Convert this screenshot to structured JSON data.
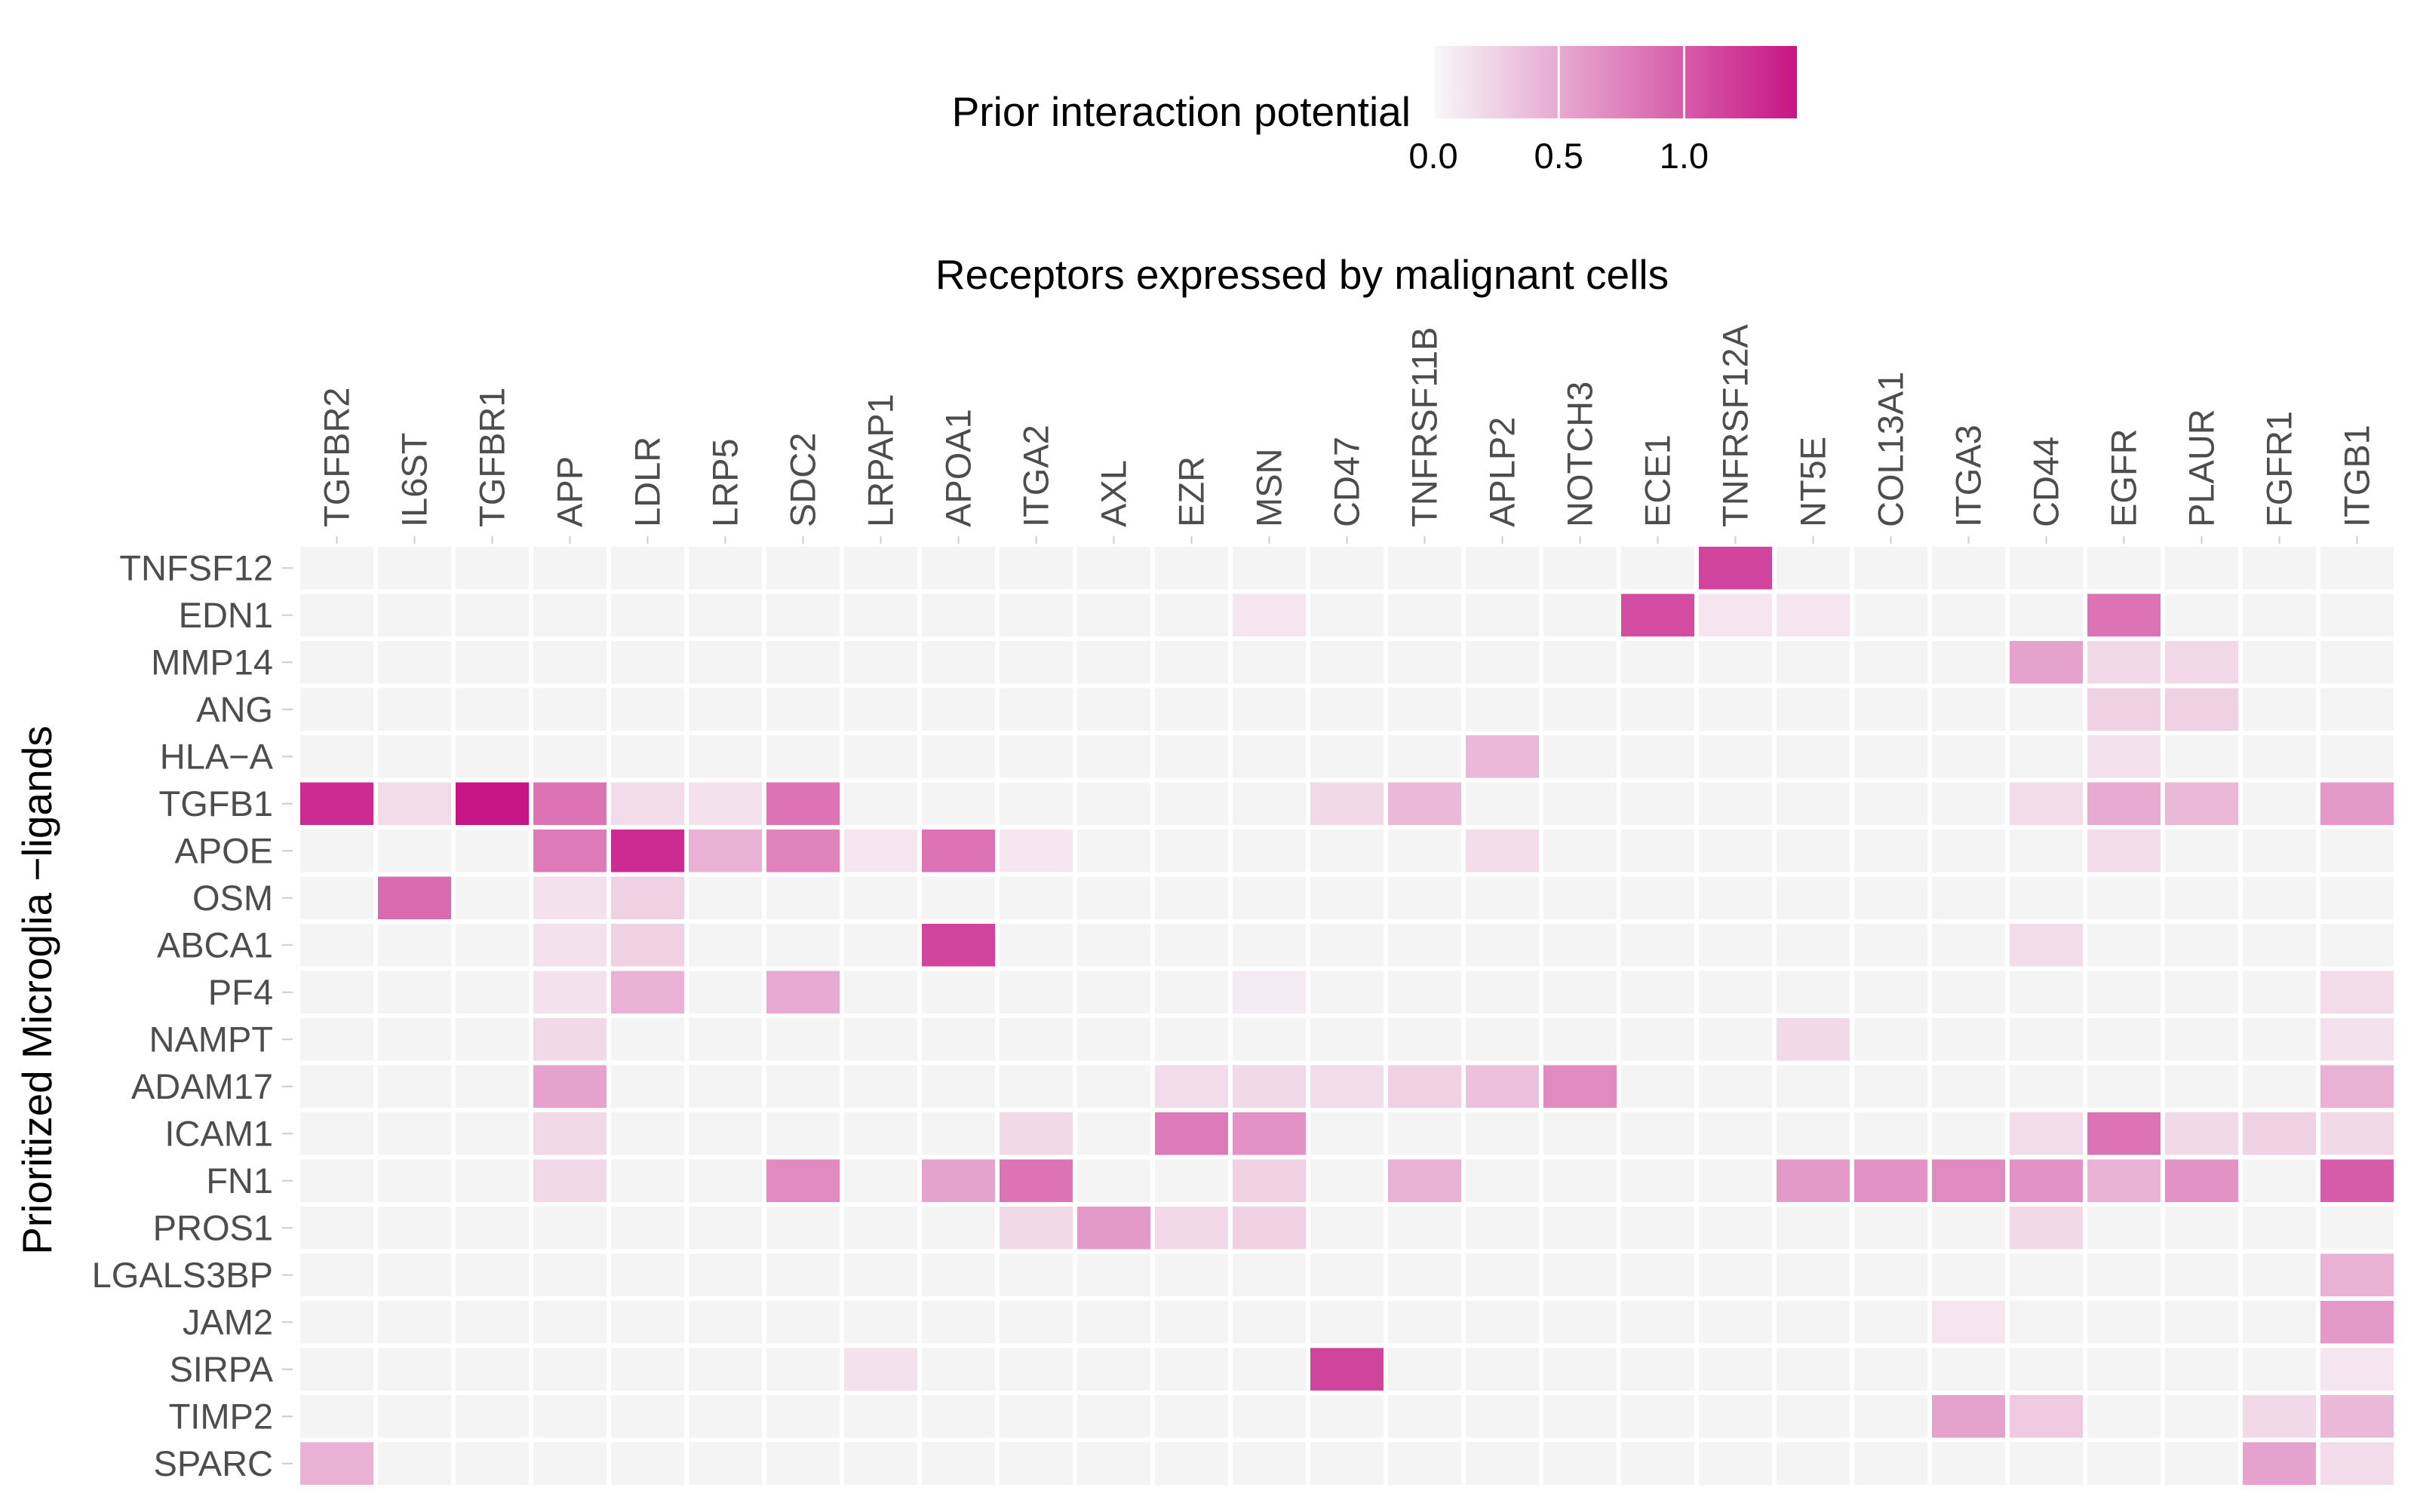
{
  "chart_data": {
    "type": "heatmap",
    "legend": {
      "title": "Prior interaction potential",
      "placement": "top",
      "ticks": [
        0.0,
        0.5,
        1.0
      ],
      "tick_labels": [
        "0.0",
        "0.5",
        "1.0"
      ],
      "range": [
        0,
        1.45
      ],
      "colors": [
        "#f8f8f8",
        "#c71585"
      ],
      "na_color": "#f4f4f4"
    },
    "title": "Receptors expressed by malignant cells",
    "ylabel": "Prioritized  Microglia −ligands",
    "x": [
      "TGFBR2",
      "IL6ST",
      "TGFBR1",
      "APP",
      "LDLR",
      "LRP5",
      "SDC2",
      "LRPAP1",
      "APOA1",
      "ITGA2",
      "AXL",
      "EZR",
      "MSN",
      "CD47",
      "TNFRSF11B",
      "APLP2",
      "NOTCH3",
      "ECE1",
      "TNFRSF12A",
      "NT5E",
      "COL13A1",
      "ITGA3",
      "CD44",
      "EGFR",
      "PLAUR",
      "FGFR1",
      "ITGB1"
    ],
    "y": [
      "TNFSF12",
      "EDN1",
      "MMP14",
      "ANG",
      "HLA−A",
      "TGFB1",
      "APOE",
      "OSM",
      "ABCA1",
      "PF4",
      "NAMPT",
      "ADAM17",
      "ICAM1",
      "FN1",
      "PROS1",
      "LGALS3BP",
      "JAM2",
      "SIRPA",
      "TIMP2",
      "SPARC"
    ],
    "values": [
      [
        0,
        0,
        0,
        0,
        0,
        0,
        0,
        0,
        0,
        0,
        0,
        0,
        0,
        0,
        0,
        0,
        0,
        0,
        1.15,
        0,
        0,
        0,
        0,
        0,
        0,
        0,
        0
      ],
      [
        0,
        0,
        0,
        0,
        0,
        0,
        0,
        0,
        0,
        0,
        0,
        0,
        0.12,
        0,
        0,
        0,
        0,
        1.1,
        0.12,
        0.12,
        0,
        0,
        0,
        0.85,
        0,
        0,
        0
      ],
      [
        0,
        0,
        0,
        0,
        0,
        0,
        0,
        0,
        0,
        0,
        0,
        0,
        0,
        0,
        0,
        0,
        0,
        0,
        0,
        0,
        0,
        0,
        0.55,
        0.2,
        0.2,
        0,
        0
      ],
      [
        0,
        0,
        0,
        0,
        0,
        0,
        0,
        0,
        0,
        0,
        0,
        0,
        0,
        0,
        0,
        0,
        0,
        0,
        0,
        0,
        0,
        0,
        0,
        0.25,
        0.25,
        0,
        0
      ],
      [
        0,
        0,
        0,
        0,
        0,
        0,
        0,
        0,
        0,
        0,
        0,
        0,
        0,
        0,
        0,
        0.4,
        0,
        0,
        0,
        0,
        0,
        0,
        0,
        0.15,
        0,
        0,
        0
      ],
      [
        1.3,
        0.18,
        1.45,
        0.85,
        0.18,
        0.15,
        0.85,
        0,
        0,
        0,
        0,
        0,
        0,
        0.2,
        0.4,
        0,
        0,
        0,
        0,
        0,
        0,
        0,
        0.18,
        0.5,
        0.4,
        0,
        0.6
      ],
      [
        0,
        0,
        0,
        0.8,
        1.3,
        0.45,
        0.75,
        0.12,
        0.85,
        0.12,
        0,
        0,
        0,
        0,
        0,
        0.18,
        0,
        0,
        0,
        0,
        0,
        0,
        0,
        0.18,
        0,
        0,
        0
      ],
      [
        0,
        0.9,
        0,
        0.15,
        0.25,
        0,
        0,
        0,
        0,
        0,
        0,
        0,
        0,
        0,
        0,
        0,
        0,
        0,
        0,
        0,
        0,
        0,
        0,
        0,
        0,
        0,
        0
      ],
      [
        0,
        0,
        0,
        0.15,
        0.25,
        0,
        0,
        0,
        1.15,
        0,
        0,
        0,
        0,
        0,
        0,
        0,
        0,
        0,
        0,
        0,
        0,
        0,
        0.18,
        0,
        0,
        0,
        0
      ],
      [
        0,
        0,
        0,
        0.15,
        0.45,
        0,
        0.5,
        0,
        0,
        0,
        0,
        0,
        0.08,
        0,
        0,
        0,
        0,
        0,
        0,
        0,
        0,
        0,
        0,
        0,
        0,
        0,
        0.18
      ],
      [
        0,
        0,
        0,
        0.2,
        0,
        0,
        0,
        0,
        0,
        0,
        0,
        0,
        0,
        0,
        0,
        0,
        0,
        0,
        0,
        0.2,
        0,
        0,
        0,
        0,
        0,
        0,
        0.15
      ],
      [
        0,
        0,
        0,
        0.55,
        0,
        0,
        0,
        0,
        0,
        0,
        0,
        0.18,
        0.2,
        0.18,
        0.25,
        0.35,
        0.7,
        0,
        0,
        0,
        0,
        0,
        0,
        0,
        0,
        0,
        0.45
      ],
      [
        0,
        0,
        0,
        0.2,
        0,
        0,
        0,
        0,
        0,
        0.2,
        0,
        0.8,
        0.65,
        0,
        0,
        0,
        0,
        0,
        0,
        0,
        0,
        0,
        0.18,
        0.85,
        0.2,
        0.25,
        0.2
      ],
      [
        0,
        0,
        0,
        0.2,
        0,
        0,
        0.7,
        0,
        0.55,
        0.85,
        0,
        0,
        0.25,
        0,
        0.45,
        0,
        0,
        0,
        0,
        0.6,
        0.65,
        0.7,
        0.65,
        0.45,
        0.65,
        0,
        1.0
      ],
      [
        0,
        0,
        0,
        0,
        0,
        0,
        0,
        0,
        0,
        0.2,
        0.6,
        0.2,
        0.25,
        0,
        0,
        0,
        0,
        0,
        0,
        0,
        0,
        0,
        0.2,
        0,
        0,
        0,
        0
      ],
      [
        0,
        0,
        0,
        0,
        0,
        0,
        0,
        0,
        0,
        0,
        0,
        0,
        0,
        0,
        0,
        0,
        0,
        0,
        0,
        0,
        0,
        0,
        0,
        0,
        0,
        0,
        0.45
      ],
      [
        0,
        0,
        0,
        0,
        0,
        0,
        0,
        0,
        0,
        0,
        0,
        0,
        0,
        0,
        0,
        0,
        0,
        0,
        0,
        0,
        0,
        0.12,
        0,
        0,
        0,
        0,
        0.6
      ],
      [
        0,
        0,
        0,
        0,
        0,
        0,
        0,
        0.15,
        0,
        0,
        0,
        0,
        0,
        1.15,
        0,
        0,
        0,
        0,
        0,
        0,
        0,
        0,
        0,
        0,
        0,
        0,
        0.12
      ],
      [
        0,
        0,
        0,
        0,
        0,
        0,
        0,
        0,
        0,
        0,
        0,
        0,
        0,
        0,
        0,
        0,
        0,
        0,
        0,
        0,
        0,
        0.55,
        0.3,
        0,
        0,
        0.2,
        0.4
      ],
      [
        0.45,
        0,
        0,
        0,
        0,
        0,
        0,
        0,
        0,
        0,
        0,
        0,
        0,
        0,
        0,
        0,
        0,
        0,
        0,
        0,
        0,
        0,
        0,
        0,
        0,
        0.55,
        0.18
      ]
    ],
    "grid": false
  }
}
